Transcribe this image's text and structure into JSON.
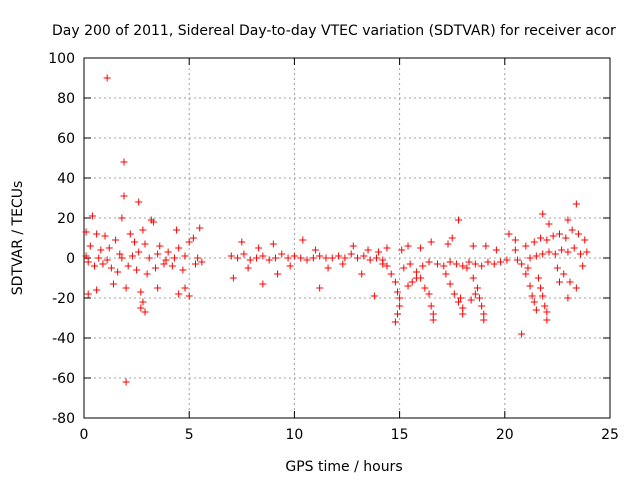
{
  "chart_data": {
    "type": "scatter",
    "title": "Day 200 of 2011, Sidereal Day-to-day VTEC variation (SDTVAR) for receiver acor",
    "xlabel": "GPS time / hours",
    "ylabel": "SDTVAR / TECUs",
    "xlim": [
      0,
      25
    ],
    "ylim": [
      -80,
      100
    ],
    "xticks": [
      0,
      5,
      10,
      15,
      20,
      25
    ],
    "yticks": [
      -80,
      -60,
      -40,
      -20,
      0,
      20,
      40,
      60,
      80,
      100
    ],
    "grid": true,
    "marker": "+",
    "color": "#ff0000",
    "series": [
      {
        "name": "SDTVAR",
        "points": [
          [
            1.1,
            90
          ],
          [
            1.9,
            48
          ],
          [
            1.9,
            31
          ],
          [
            2.6,
            28
          ],
          [
            1.8,
            20
          ],
          [
            0.4,
            21
          ],
          [
            2.0,
            -62
          ],
          [
            21.8,
            22
          ],
          [
            23.4,
            27
          ],
          [
            17.8,
            19
          ],
          [
            20.8,
            -38
          ],
          [
            4.4,
            14
          ],
          [
            5.5,
            15
          ],
          [
            5.2,
            10
          ],
          [
            0.1,
            13
          ],
          [
            0.6,
            12
          ],
          [
            1.0,
            11
          ],
          [
            1.5,
            9
          ],
          [
            2.2,
            12
          ],
          [
            2.8,
            14
          ],
          [
            3.2,
            19
          ],
          [
            3.3,
            18
          ],
          [
            2.4,
            8
          ],
          [
            2.9,
            7
          ],
          [
            3.6,
            6
          ],
          [
            4.0,
            3
          ],
          [
            4.5,
            5
          ],
          [
            5.0,
            8
          ],
          [
            0.3,
            6
          ],
          [
            0.8,
            4
          ],
          [
            1.2,
            5
          ],
          [
            1.7,
            2
          ],
          [
            0.2,
            -2
          ],
          [
            0.5,
            -4
          ],
          [
            0.9,
            -3
          ],
          [
            1.3,
            -5
          ],
          [
            1.6,
            -7
          ],
          [
            2.1,
            -4
          ],
          [
            2.5,
            -6
          ],
          [
            3.0,
            -8
          ],
          [
            3.4,
            -5
          ],
          [
            3.8,
            -3
          ],
          [
            4.2,
            -4
          ],
          [
            4.7,
            -6
          ],
          [
            5.3,
            -3
          ],
          [
            5.6,
            -2
          ],
          [
            0.2,
            -18
          ],
          [
            0.6,
            -16
          ],
          [
            1.4,
            -13
          ],
          [
            2.0,
            -15
          ],
          [
            2.7,
            -17
          ],
          [
            2.8,
            -22
          ],
          [
            2.9,
            -27
          ],
          [
            2.7,
            -25
          ],
          [
            3.5,
            -15
          ],
          [
            4.5,
            -18
          ],
          [
            5.0,
            -19
          ],
          [
            4.8,
            -15
          ],
          [
            0.1,
            1
          ],
          [
            0.7,
            0
          ],
          [
            1.1,
            -1
          ],
          [
            1.8,
            0
          ],
          [
            2.3,
            1
          ],
          [
            2.6,
            3
          ],
          [
            3.1,
            0
          ],
          [
            3.5,
            2
          ],
          [
            3.9,
            -1
          ],
          [
            4.3,
            0
          ],
          [
            4.8,
            1
          ],
          [
            5.4,
            0
          ],
          [
            7.0,
            1
          ],
          [
            7.3,
            0
          ],
          [
            7.6,
            2
          ],
          [
            7.9,
            -1
          ],
          [
            8.2,
            0
          ],
          [
            8.5,
            1
          ],
          [
            8.8,
            -1
          ],
          [
            9.1,
            0
          ],
          [
            9.4,
            2
          ],
          [
            9.7,
            0
          ],
          [
            10.0,
            1
          ],
          [
            10.3,
            0
          ],
          [
            10.6,
            -1
          ],
          [
            10.9,
            0
          ],
          [
            11.2,
            1
          ],
          [
            11.5,
            0
          ],
          [
            11.8,
            0
          ],
          [
            12.1,
            1
          ],
          [
            12.4,
            0
          ],
          [
            12.7,
            2
          ],
          [
            13.0,
            0
          ],
          [
            13.3,
            1
          ],
          [
            13.6,
            -1
          ],
          [
            13.9,
            0
          ],
          [
            14.2,
            -1
          ],
          [
            7.1,
            -10
          ],
          [
            7.8,
            -5
          ],
          [
            8.5,
            -13
          ],
          [
            9.2,
            -8
          ],
          [
            9.8,
            -4
          ],
          [
            10.4,
            9
          ],
          [
            11.2,
            -15
          ],
          [
            11.6,
            -5
          ],
          [
            12.3,
            -3
          ],
          [
            12.8,
            6
          ],
          [
            13.2,
            -8
          ],
          [
            13.8,
            -19
          ],
          [
            14.4,
            5
          ],
          [
            7.5,
            8
          ],
          [
            8.3,
            5
          ],
          [
            9.0,
            7
          ],
          [
            11.0,
            4
          ],
          [
            13.5,
            4
          ],
          [
            14.0,
            3
          ],
          [
            14.2,
            -3
          ],
          [
            14.4,
            -4
          ],
          [
            14.6,
            -8
          ],
          [
            14.8,
            -12
          ],
          [
            14.9,
            -17
          ],
          [
            15.0,
            -20
          ],
          [
            15.0,
            -24
          ],
          [
            14.9,
            -28
          ],
          [
            14.8,
            -32
          ],
          [
            15.2,
            -5
          ],
          [
            15.5,
            -3
          ],
          [
            15.8,
            -7
          ],
          [
            16.0,
            -10
          ],
          [
            16.2,
            -15
          ],
          [
            16.4,
            -18
          ],
          [
            16.5,
            -24
          ],
          [
            16.6,
            -28
          ],
          [
            16.6,
            -31
          ],
          [
            15.4,
            -14
          ],
          [
            15.6,
            -12
          ],
          [
            15.8,
            -10
          ],
          [
            16.1,
            -4
          ],
          [
            16.4,
            -2
          ],
          [
            16.8,
            -3
          ],
          [
            17.1,
            -4
          ],
          [
            17.4,
            -2
          ],
          [
            17.7,
            -3
          ],
          [
            18.0,
            -4
          ],
          [
            18.3,
            -2
          ],
          [
            18.6,
            -3
          ],
          [
            18.9,
            -4
          ],
          [
            19.2,
            -2
          ],
          [
            19.5,
            -3
          ],
          [
            19.8,
            -2
          ],
          [
            20.1,
            -1
          ],
          [
            17.2,
            -8
          ],
          [
            17.4,
            -13
          ],
          [
            17.6,
            -18
          ],
          [
            17.8,
            -22
          ],
          [
            18.0,
            -25
          ],
          [
            18.0,
            -28
          ],
          [
            17.9,
            -20
          ],
          [
            18.2,
            -5
          ],
          [
            18.5,
            -10
          ],
          [
            18.7,
            -15
          ],
          [
            18.8,
            -20
          ],
          [
            18.9,
            -24
          ],
          [
            19.0,
            -28
          ],
          [
            19.0,
            -31
          ],
          [
            18.6,
            -18
          ],
          [
            18.4,
            -21
          ],
          [
            16.0,
            5
          ],
          [
            16.5,
            8
          ],
          [
            17.3,
            7
          ],
          [
            18.5,
            6
          ],
          [
            19.1,
            6
          ],
          [
            19.6,
            4
          ],
          [
            15.1,
            4
          ],
          [
            15.4,
            6
          ],
          [
            17.5,
            10
          ],
          [
            20.5,
            4
          ],
          [
            20.8,
            -3
          ],
          [
            21.0,
            -8
          ],
          [
            21.2,
            -14
          ],
          [
            21.3,
            -19
          ],
          [
            21.4,
            -22
          ],
          [
            21.5,
            -26
          ],
          [
            21.6,
            -10
          ],
          [
            21.7,
            -15
          ],
          [
            21.8,
            -19
          ],
          [
            21.9,
            -24
          ],
          [
            22.0,
            -27
          ],
          [
            22.0,
            -31
          ],
          [
            21.1,
            -5
          ],
          [
            20.6,
            -1
          ],
          [
            21.2,
            0
          ],
          [
            21.5,
            1
          ],
          [
            21.8,
            2
          ],
          [
            22.1,
            3
          ],
          [
            22.4,
            2
          ],
          [
            22.7,
            4
          ],
          [
            23.0,
            3
          ],
          [
            23.3,
            5
          ],
          [
            23.6,
            2
          ],
          [
            23.9,
            3
          ],
          [
            21.0,
            6
          ],
          [
            21.4,
            8
          ],
          [
            21.7,
            10
          ],
          [
            22.0,
            9
          ],
          [
            22.3,
            11
          ],
          [
            22.6,
            12
          ],
          [
            22.9,
            10
          ],
          [
            23.2,
            14
          ],
          [
            23.5,
            12
          ],
          [
            23.8,
            9
          ],
          [
            22.5,
            -5
          ],
          [
            22.8,
            -8
          ],
          [
            23.1,
            -12
          ],
          [
            22.6,
            -12
          ],
          [
            23.0,
            -20
          ],
          [
            23.4,
            -15
          ],
          [
            23.7,
            -4
          ],
          [
            20.2,
            12
          ],
          [
            20.5,
            9
          ],
          [
            22.1,
            17
          ],
          [
            23.0,
            19
          ]
        ]
      }
    ]
  }
}
